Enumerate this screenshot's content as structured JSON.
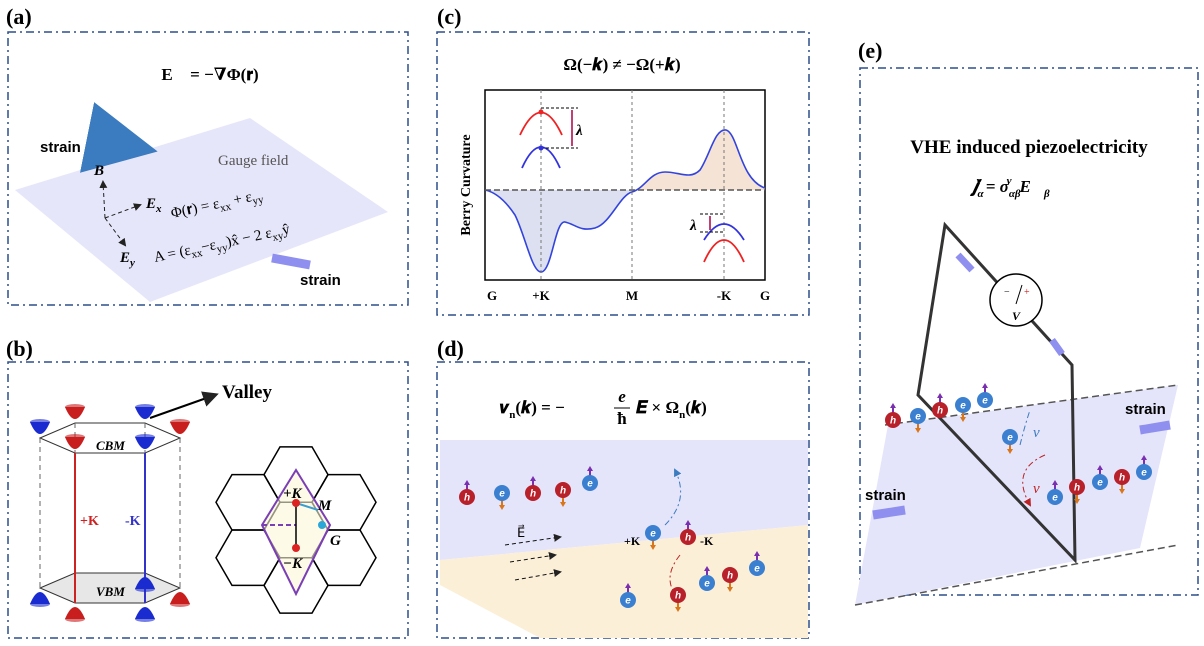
{
  "a": {
    "label": "(a)",
    "equation": "E⃗ = −∇Φ(𝐫)",
    "strain_top": "strain",
    "strain_bottom": "strain",
    "gauge_field": "Gauge field",
    "b_vector": "B⃗",
    "e_x": [
      "E",
      "x"
    ],
    "e_y": [
      "E",
      "y"
    ],
    "phi": [
      "Φ(𝐫) = ε",
      "xx",
      " + ε",
      "yy"
    ],
    "a_field": [
      "A = (ε",
      "xx",
      "−ε",
      "yy",
      ")x̂ − 2 ε",
      "xy",
      "ŷ"
    ]
  },
  "b": {
    "label": "(b)",
    "valley": "Valley",
    "cbm": "CBM",
    "vbm": "VBM",
    "plus_k": "+K",
    "minus_k": "-K",
    "bz_plus_k": "+K",
    "bz_m": "M",
    "bz_g": "G",
    "bz_minus_k": "−K"
  },
  "c": {
    "label": "(c)",
    "equation": "Ω(−𝒌) ≠ −Ω(+𝒌)",
    "y_axis_label": "Berry Curvature",
    "lambda_left": "λ",
    "lambda_right": "λ",
    "x_ticks": [
      "G",
      "+K",
      "M",
      "-K",
      "G"
    ]
  },
  "d": {
    "label": "(d)",
    "equation": {
      "lhs": [
        "𝒗",
        "n",
        "(𝒌) = −"
      ],
      "numerator": "e",
      "denominator": "ħ",
      "rhs": [
        "𝑬 × Ω",
        "n",
        "(𝒌)"
      ]
    },
    "e_field": "E⃗",
    "plus_k": "+K",
    "minus_k": "-K",
    "electron": "e",
    "hole": "h"
  },
  "e": {
    "label": "(e)",
    "title": "VHE induced piezoelectricity",
    "equation": [
      "𝒋",
      "α",
      "v",
      " = σ",
      "αβ",
      "v",
      "E⃗",
      "β"
    ],
    "strain_right": "strain",
    "strain_left": "strain",
    "meter": "V",
    "meter_minus": "−",
    "meter_plus": "+",
    "velocity_top": "v",
    "velocity_bottom": "v",
    "electron": "e",
    "hole": "h"
  }
}
